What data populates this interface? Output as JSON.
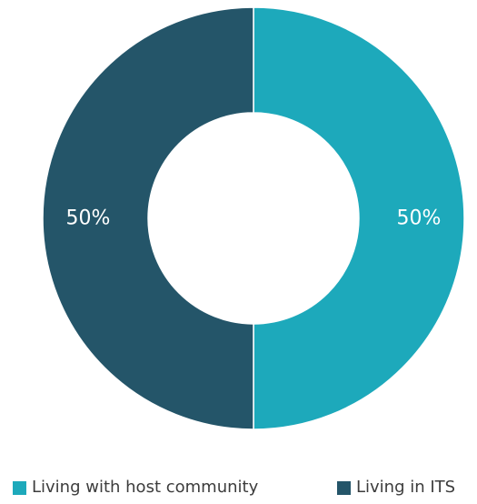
{
  "chart_data": {
    "type": "pie",
    "donut": true,
    "categories": [
      "Living with host community",
      "Living in ITS"
    ],
    "values": [
      50,
      50
    ],
    "data_labels": [
      "50%",
      "50%"
    ],
    "colors": [
      "#1da9bb",
      "#245569"
    ],
    "title": "",
    "legend_position": "bottom"
  },
  "legend": {
    "items": [
      {
        "label": "Living with host community",
        "color": "#1da9bb"
      },
      {
        "label": "Living in ITS",
        "color": "#245569"
      }
    ]
  }
}
